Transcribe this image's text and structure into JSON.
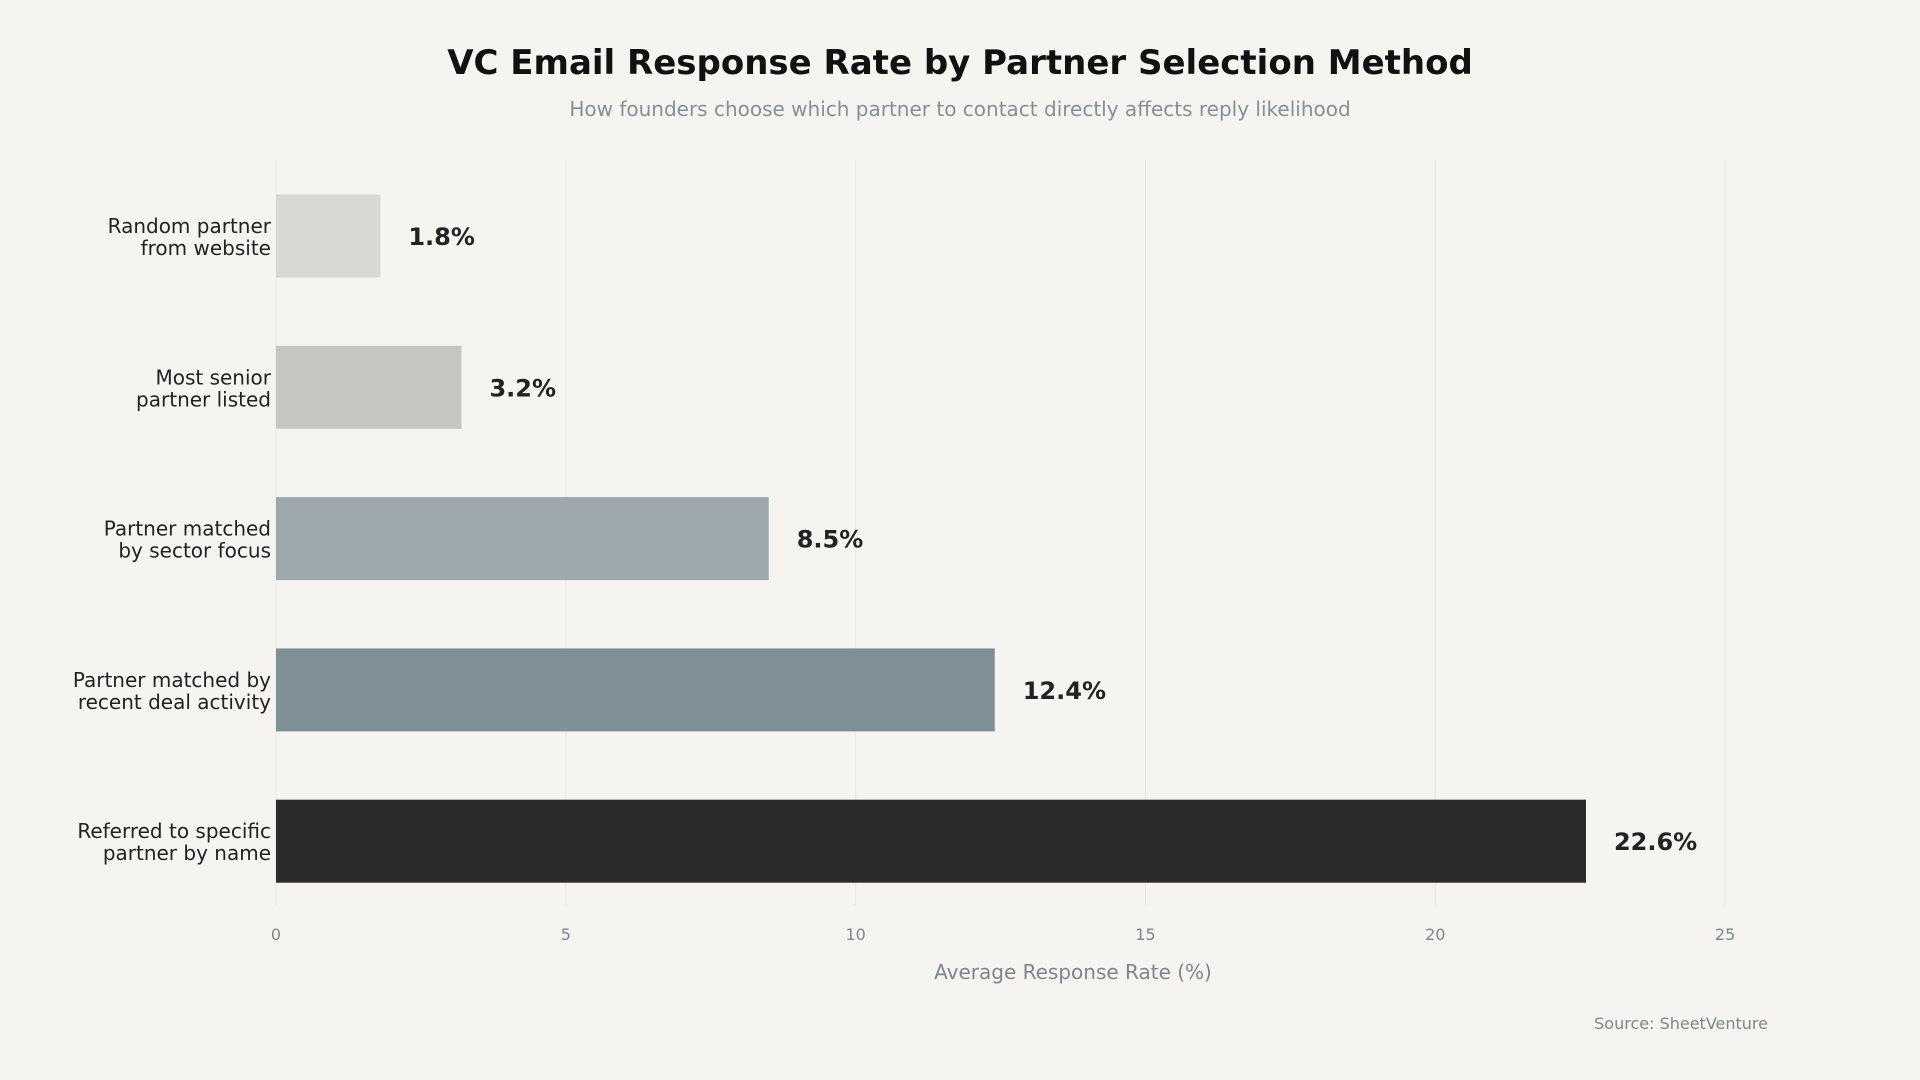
{
  "chart_data": {
    "type": "bar",
    "orientation": "horizontal",
    "title": "VC Email Response Rate by Partner Selection Method",
    "subtitle": "How founders choose which partner to contact directly affects reply likelihood",
    "xlabel": "Average Response Rate (%)",
    "ylabel": "",
    "categories": [
      [
        "Random partner",
        "from website"
      ],
      [
        "Most senior",
        "partner listed"
      ],
      [
        "Partner matched",
        "by sector focus"
      ],
      [
        "Partner matched by",
        "recent deal activity"
      ],
      [
        "Referred to specific",
        "partner by name"
      ]
    ],
    "values": [
      1.8,
      3.2,
      8.5,
      12.4,
      22.6
    ],
    "value_labels": [
      "1.8%",
      "3.2%",
      "8.5%",
      "12.4%",
      "22.6%"
    ],
    "bar_colors": [
      "#d9d8d4",
      "#c6c5c1",
      "#9ca8ac",
      "#7e8f95",
      "#2a2a2a"
    ],
    "xlim": [
      0,
      27.5
    ],
    "xticks": [
      0,
      5,
      10,
      15,
      20,
      25
    ],
    "xtick_labels": [
      "0",
      "5",
      "10",
      "15",
      "20",
      "25"
    ],
    "grid": "vertical",
    "source": "Source: SheetVenture"
  }
}
